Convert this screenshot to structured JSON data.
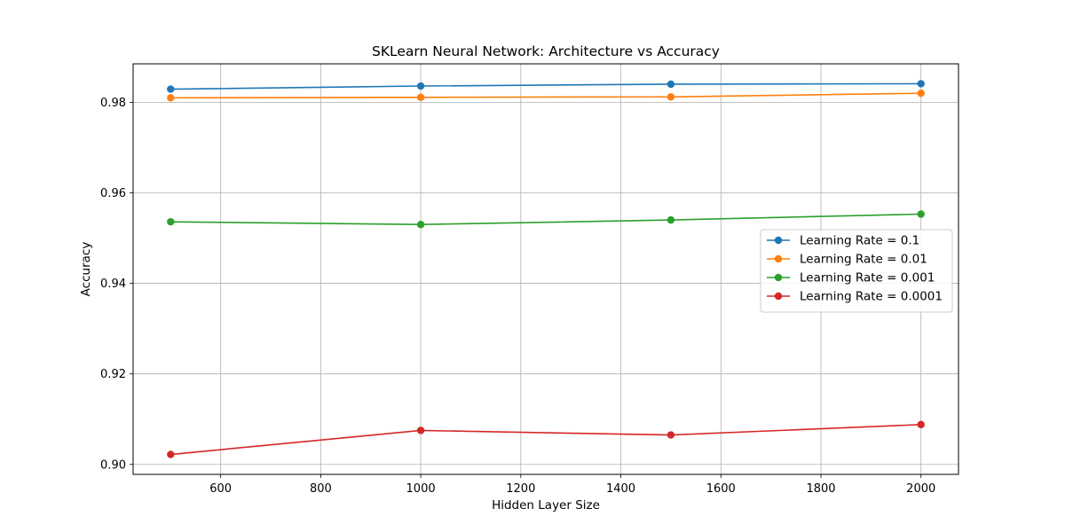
{
  "chart_data": {
    "type": "line",
    "title": "SKLearn Neural Network: Architecture vs Accuracy",
    "xlabel": "Hidden Layer Size",
    "ylabel": "Accuracy",
    "x": [
      500,
      1000,
      1500,
      2000
    ],
    "series": [
      {
        "name": "Learning Rate = 0.1",
        "color": "#1f77b4",
        "values": [
          0.9829,
          0.9836,
          0.984,
          0.9841
        ]
      },
      {
        "name": "Learning Rate = 0.01",
        "color": "#ff7f0e",
        "values": [
          0.981,
          0.9811,
          0.9812,
          0.982
        ]
      },
      {
        "name": "Learning Rate = 0.001",
        "color": "#2ca02c",
        "values": [
          0.9536,
          0.953,
          0.954,
          0.9553
        ]
      },
      {
        "name": "Learning Rate = 0.0001",
        "color": "#d62728",
        "values": [
          0.9022,
          0.9075,
          0.9065,
          0.9088
        ]
      }
    ],
    "xlim": [
      425,
      2075
    ],
    "ylim": [
      0.8978,
      0.9885
    ],
    "xticks": [
      600,
      800,
      1000,
      1200,
      1400,
      1600,
      1800,
      2000
    ],
    "xtick_labels": [
      "600",
      "800",
      "1000",
      "1200",
      "1400",
      "1600",
      "1800",
      "2000"
    ],
    "yticks": [
      0.9,
      0.92,
      0.94,
      0.96,
      0.98
    ],
    "ytick_labels": [
      "0.90",
      "0.92",
      "0.94",
      "0.96",
      "0.98"
    ],
    "grid": true,
    "legend_position": "center-right",
    "marker": "circle"
  }
}
